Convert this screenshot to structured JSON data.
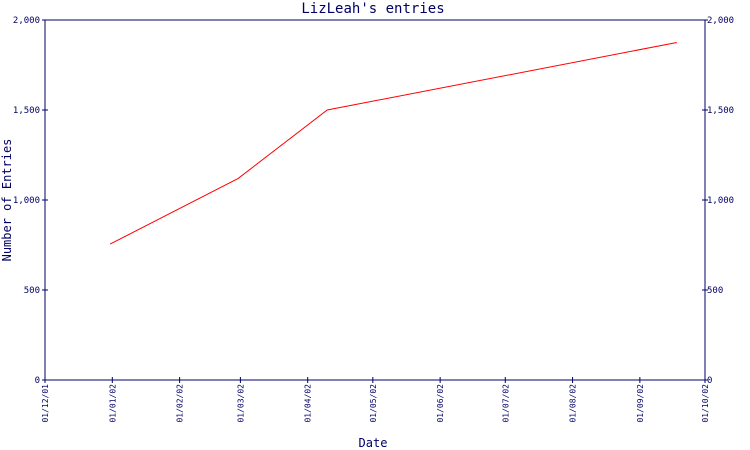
{
  "chart_data": {
    "type": "line",
    "title": "LizLeah's entries",
    "xlabel": "Date",
    "ylabel": "Number of Entries",
    "x_tick_labels": [
      "01/12/01",
      "01/01/02",
      "01/02/02",
      "01/03/02",
      "01/04/02",
      "01/05/02",
      "01/06/02",
      "01/07/02",
      "01/08/02",
      "01/09/02",
      "01/10/02"
    ],
    "y_ticks": [
      0,
      500,
      1000,
      1500,
      2000
    ],
    "y_tick_labels": [
      "0",
      "500",
      "1,000",
      "1,500",
      "2,000"
    ],
    "ylim": [
      0,
      2000
    ],
    "xlim": [
      "2001-12-01",
      "2002-10-01"
    ],
    "grid": false,
    "right_axis_mirrored": true,
    "series": [
      {
        "color": "#ff0000",
        "points": [
          {
            "x": "2001-12-31",
            "y": 755
          },
          {
            "x": "2002-02-28",
            "y": 1120
          },
          {
            "x": "2002-04-10",
            "y": 1500
          },
          {
            "x": "2002-09-18",
            "y": 1875
          }
        ]
      }
    ]
  },
  "colors": {
    "axis": "#000066",
    "line": "#ff0000",
    "background": "#ffffff"
  }
}
